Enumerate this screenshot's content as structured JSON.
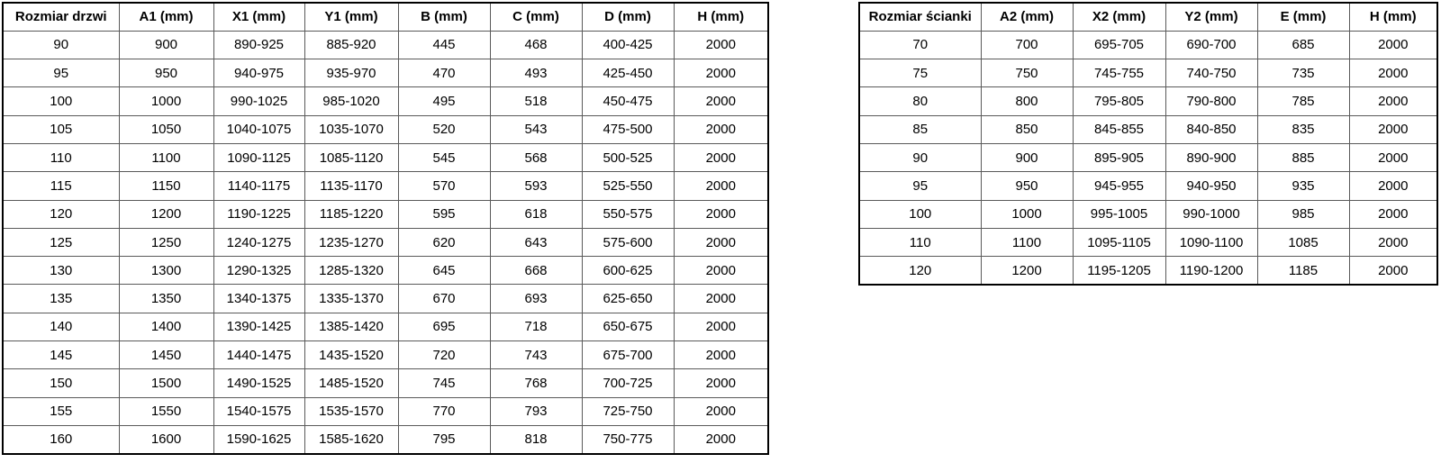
{
  "tables": [
    {
      "id": "door",
      "name": "door-size-table",
      "headers": [
        "Rozmiar drzwi",
        "A1 (mm)",
        "X1 (mm)",
        "Y1 (mm)",
        "B (mm)",
        "C (mm)",
        "D (mm)",
        "H (mm)"
      ],
      "rows": [
        [
          "90",
          "900",
          "890-925",
          "885-920",
          "445",
          "468",
          "400-425",
          "2000"
        ],
        [
          "95",
          "950",
          "940-975",
          "935-970",
          "470",
          "493",
          "425-450",
          "2000"
        ],
        [
          "100",
          "1000",
          "990-1025",
          "985-1020",
          "495",
          "518",
          "450-475",
          "2000"
        ],
        [
          "105",
          "1050",
          "1040-1075",
          "1035-1070",
          "520",
          "543",
          "475-500",
          "2000"
        ],
        [
          "110",
          "1100",
          "1090-1125",
          "1085-1120",
          "545",
          "568",
          "500-525",
          "2000"
        ],
        [
          "115",
          "1150",
          "1140-1175",
          "1135-1170",
          "570",
          "593",
          "525-550",
          "2000"
        ],
        [
          "120",
          "1200",
          "1190-1225",
          "1185-1220",
          "595",
          "618",
          "550-575",
          "2000"
        ],
        [
          "125",
          "1250",
          "1240-1275",
          "1235-1270",
          "620",
          "643",
          "575-600",
          "2000"
        ],
        [
          "130",
          "1300",
          "1290-1325",
          "1285-1320",
          "645",
          "668",
          "600-625",
          "2000"
        ],
        [
          "135",
          "1350",
          "1340-1375",
          "1335-1370",
          "670",
          "693",
          "625-650",
          "2000"
        ],
        [
          "140",
          "1400",
          "1390-1425",
          "1385-1420",
          "695",
          "718",
          "650-675",
          "2000"
        ],
        [
          "145",
          "1450",
          "1440-1475",
          "1435-1520",
          "720",
          "743",
          "675-700",
          "2000"
        ],
        [
          "150",
          "1500",
          "1490-1525",
          "1485-1520",
          "745",
          "768",
          "700-725",
          "2000"
        ],
        [
          "155",
          "1550",
          "1540-1575",
          "1535-1570",
          "770",
          "793",
          "725-750",
          "2000"
        ],
        [
          "160",
          "1600",
          "1590-1625",
          "1585-1620",
          "795",
          "818",
          "750-775",
          "2000"
        ]
      ]
    },
    {
      "id": "wall",
      "name": "wall-panel-size-table",
      "headers": [
        "Rozmiar ścianki",
        "A2 (mm)",
        "X2 (mm)",
        "Y2 (mm)",
        "E (mm)",
        "H (mm)"
      ],
      "rows": [
        [
          "70",
          "700",
          "695-705",
          "690-700",
          "685",
          "2000"
        ],
        [
          "75",
          "750",
          "745-755",
          "740-750",
          "735",
          "2000"
        ],
        [
          "80",
          "800",
          "795-805",
          "790-800",
          "785",
          "2000"
        ],
        [
          "85",
          "850",
          "845-855",
          "840-850",
          "835",
          "2000"
        ],
        [
          "90",
          "900",
          "895-905",
          "890-900",
          "885",
          "2000"
        ],
        [
          "95",
          "950",
          "945-955",
          "940-950",
          "935",
          "2000"
        ],
        [
          "100",
          "1000",
          "995-1005",
          "990-1000",
          "985",
          "2000"
        ],
        [
          "110",
          "1100",
          "1095-1105",
          "1090-1100",
          "1085",
          "2000"
        ],
        [
          "120",
          "1200",
          "1195-1205",
          "1190-1200",
          "1185",
          "2000"
        ]
      ]
    }
  ],
  "colors": {
    "background": "#ffffff",
    "text": "#000000",
    "outer_border": "#000000",
    "grid_line": "#5a5a5a"
  }
}
